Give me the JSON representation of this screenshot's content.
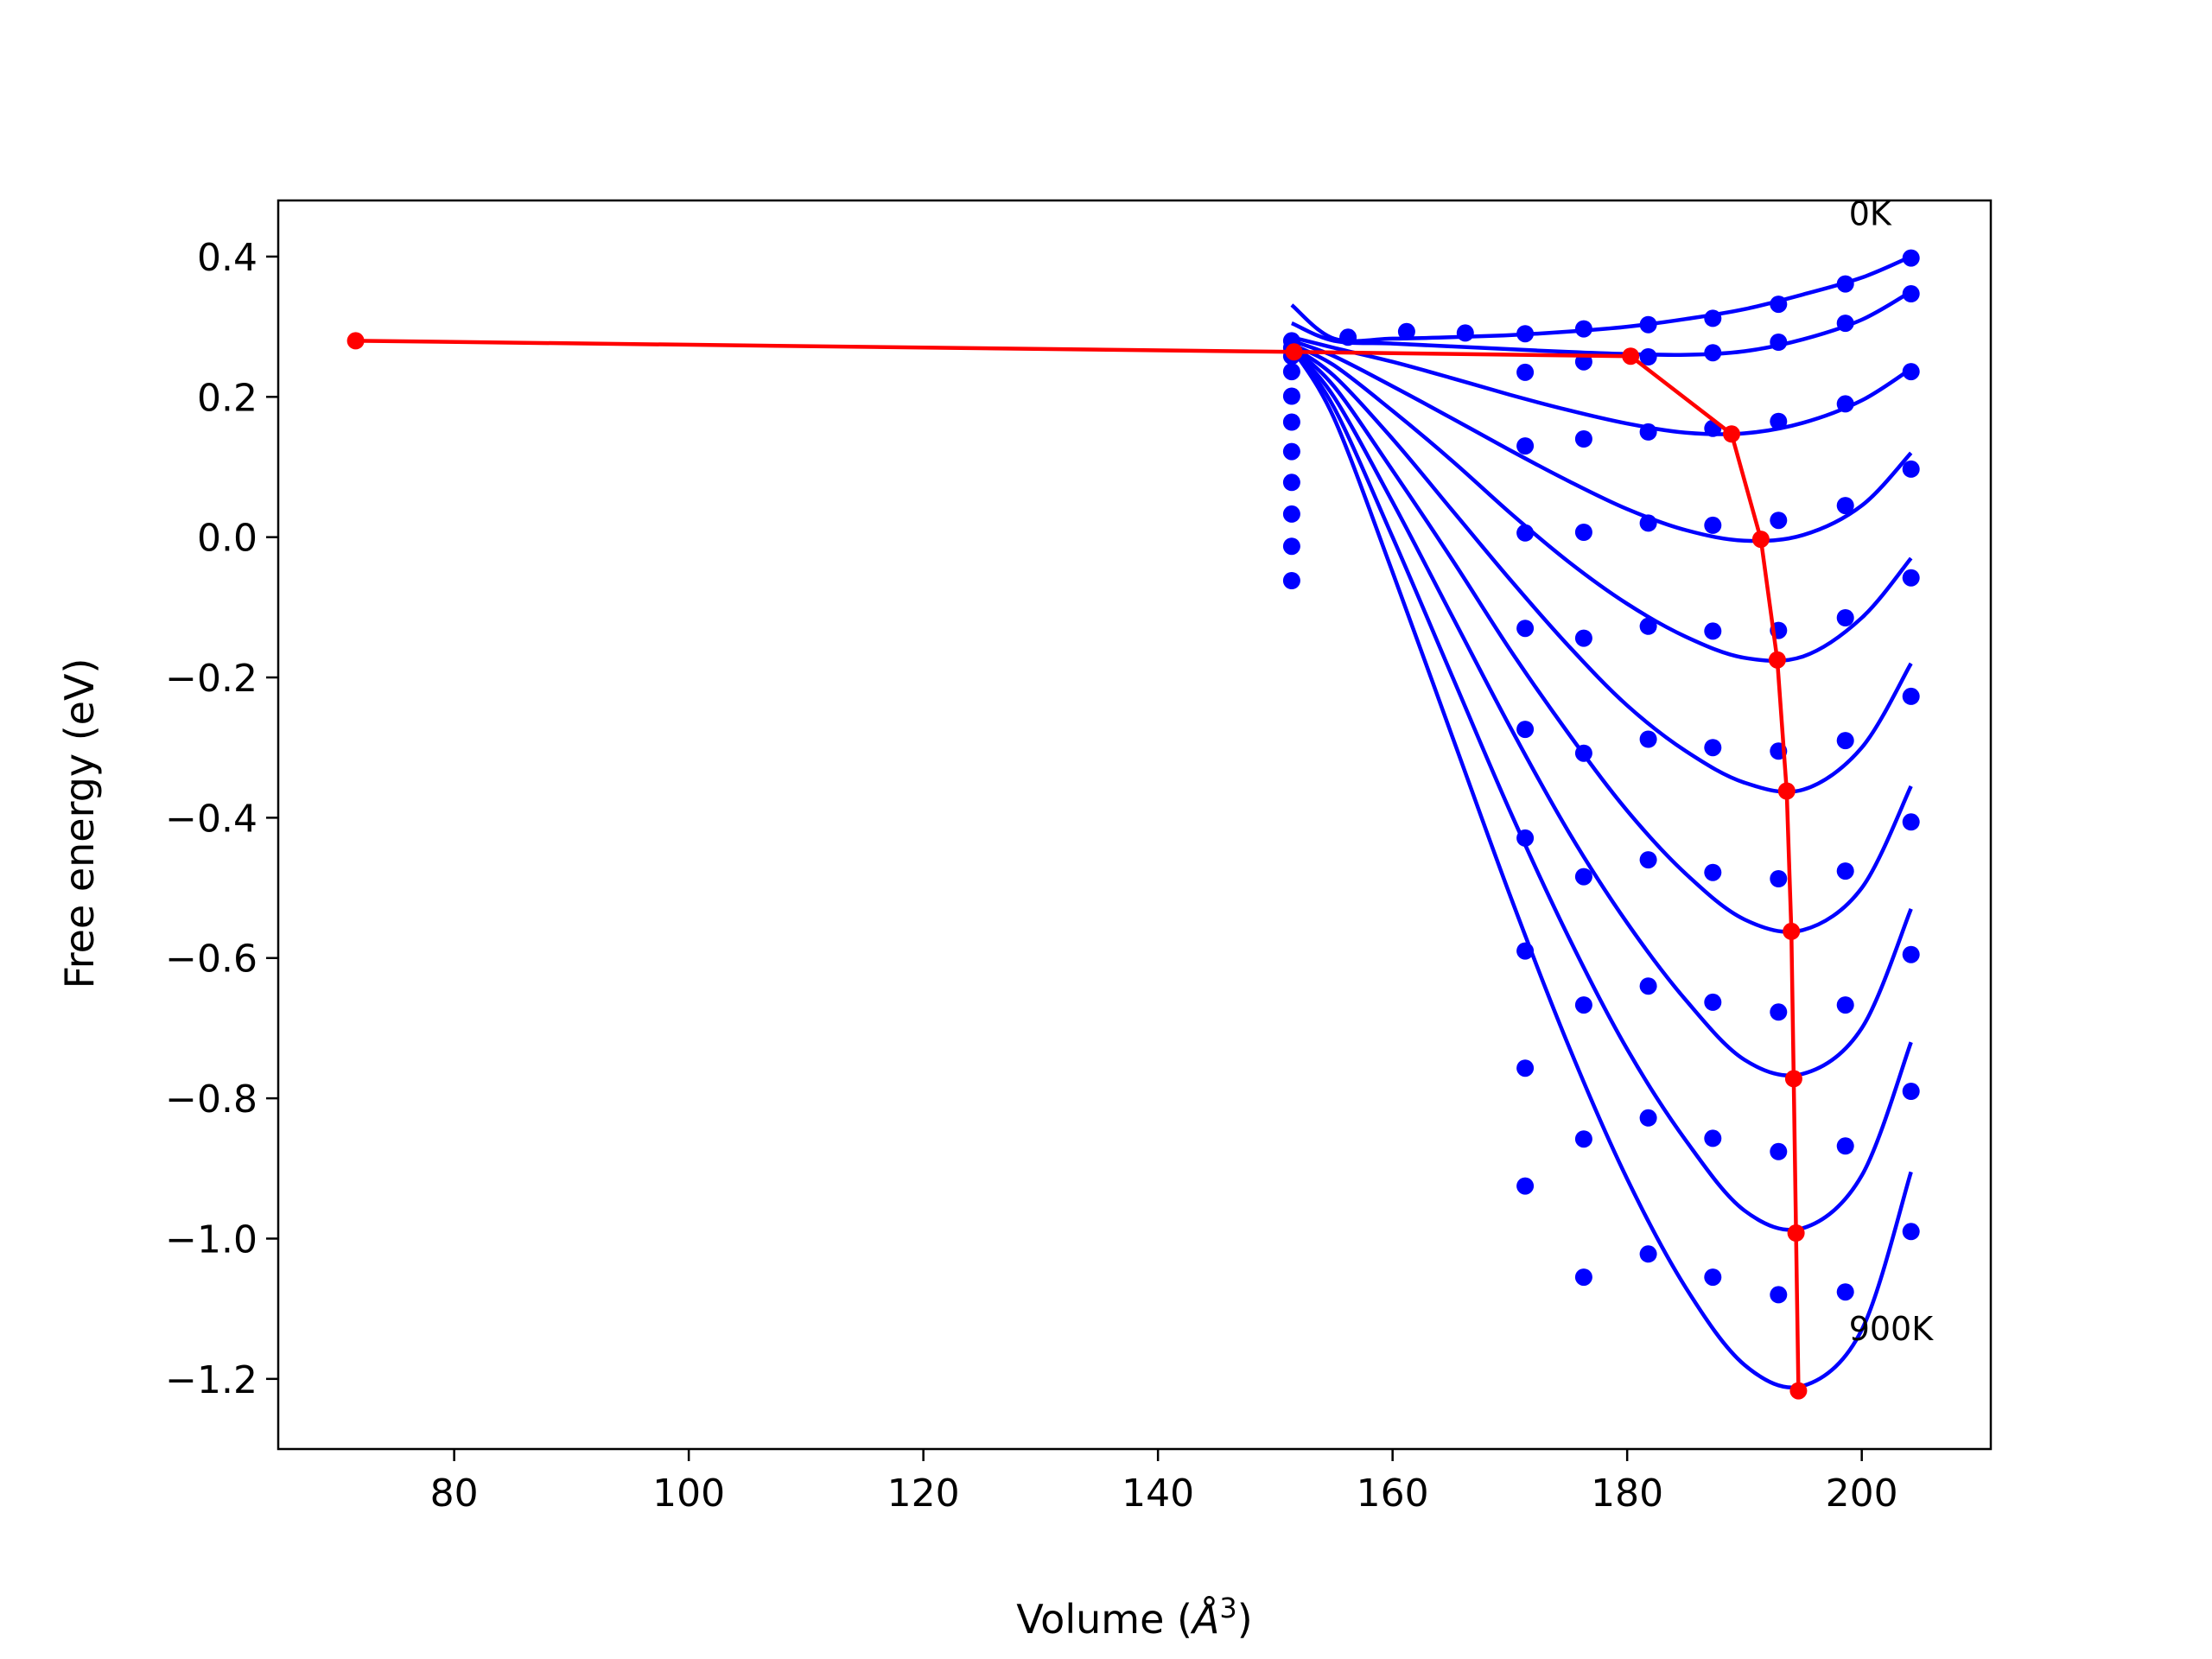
{
  "chart_data": {
    "type": "line",
    "title": "",
    "xlabel": "Volume (Å³)",
    "xlabel_parts": {
      "base": "Volume (",
      "unit": "Å",
      "exp": "3",
      "close": ")"
    },
    "ylabel": "Free energy (eV)",
    "xlim": [
      65,
      211
    ],
    "ylim": [
      -1.3,
      0.48
    ],
    "xticks": [
      80,
      100,
      120,
      140,
      160,
      180,
      200
    ],
    "xtick_labels": [
      "80",
      "100",
      "120",
      "140",
      "160",
      "180",
      "200"
    ],
    "yticks": [
      0.4,
      0.2,
      0.0,
      -0.2,
      -0.4,
      -0.6,
      -0.8,
      -1.0,
      -1.2
    ],
    "ytick_labels": [
      "0.4",
      "0.2",
      "0.0",
      "−0.2",
      "−0.4",
      "−0.6",
      "−0.8",
      "−1.0",
      "−1.2"
    ],
    "grid": false,
    "legend": "none",
    "colors": {
      "fit": "#0000ff",
      "points": "#0000ff",
      "minimum_path": "#ff0000"
    },
    "annotations": [
      {
        "text": "0K",
        "x": 198.9,
        "y": 0.445
      },
      {
        "text": "900K",
        "x": 198.9,
        "y": -1.145
      }
    ],
    "fit_curves": [
      {
        "x": [
          151.4,
          155,
          160,
          165,
          170,
          175,
          180,
          185,
          190,
          195,
          200,
          204.2
        ],
        "y": [
          0.331,
          0.283,
          0.283,
          0.285,
          0.288,
          0.293,
          0.3,
          0.311,
          0.325,
          0.346,
          0.37,
          0.4
        ]
      },
      {
        "x": [
          151.4,
          155,
          160,
          165,
          170,
          175,
          180,
          185,
          190,
          195,
          200,
          204.2
        ],
        "y": [
          0.305,
          0.28,
          0.276,
          0.272,
          0.268,
          0.264,
          0.261,
          0.26,
          0.265,
          0.282,
          0.31,
          0.35
        ]
      },
      {
        "x": [
          151.4,
          155,
          160,
          165,
          170,
          175,
          180,
          185,
          190,
          195,
          200,
          204.2
        ],
        "y": [
          0.285,
          0.27,
          0.25,
          0.227,
          0.203,
          0.181,
          0.162,
          0.149,
          0.148,
          0.163,
          0.195,
          0.24
        ]
      },
      {
        "x": [
          151.4,
          155,
          160,
          165,
          170,
          175,
          180,
          185,
          190,
          195,
          200,
          204.2
        ],
        "y": [
          0.28,
          0.258,
          0.215,
          0.17,
          0.124,
          0.08,
          0.04,
          0.01,
          -0.005,
          0.003,
          0.045,
          0.12
        ]
      },
      {
        "x": [
          151.4,
          155,
          160,
          165,
          170,
          175,
          180,
          185,
          190,
          195,
          200,
          204.2
        ],
        "y": [
          0.275,
          0.245,
          0.18,
          0.11,
          0.035,
          -0.035,
          -0.095,
          -0.142,
          -0.172,
          -0.17,
          -0.115,
          -0.03
        ]
      },
      {
        "x": [
          151.4,
          155,
          160,
          165,
          170,
          175,
          180,
          185,
          190,
          195,
          200,
          204.2
        ],
        "y": [
          0.272,
          0.23,
          0.14,
          0.04,
          -0.06,
          -0.155,
          -0.24,
          -0.305,
          -0.35,
          -0.36,
          -0.3,
          -0.18
        ]
      },
      {
        "x": [
          151.4,
          155,
          160,
          165,
          170,
          175,
          180,
          185,
          190,
          195,
          200,
          204.2
        ],
        "y": [
          0.271,
          0.215,
          0.095,
          -0.03,
          -0.16,
          -0.28,
          -0.39,
          -0.48,
          -0.545,
          -0.56,
          -0.5,
          -0.355
        ]
      },
      {
        "x": [
          151.4,
          155,
          160,
          165,
          170,
          175,
          180,
          185,
          190,
          195,
          200,
          204.2
        ],
        "y": [
          0.27,
          0.2,
          0.05,
          -0.11,
          -0.27,
          -0.42,
          -0.55,
          -0.66,
          -0.745,
          -0.765,
          -0.7,
          -0.53
        ]
      },
      {
        "x": [
          151.4,
          155,
          160,
          165,
          170,
          175,
          180,
          185,
          190,
          195,
          200,
          204.2
        ],
        "y": [
          0.27,
          0.185,
          0.0,
          -0.195,
          -0.39,
          -0.57,
          -0.73,
          -0.86,
          -0.96,
          -0.985,
          -0.91,
          -0.72
        ]
      },
      {
        "x": [
          151.4,
          155,
          160,
          165,
          170,
          175,
          180,
          185,
          190,
          195,
          200,
          204.2
        ],
        "y": [
          0.27,
          0.17,
          -0.05,
          -0.28,
          -0.51,
          -0.725,
          -0.915,
          -1.07,
          -1.18,
          -1.21,
          -1.13,
          -0.905
        ]
      }
    ],
    "point_series": [
      {
        "x": [
          151.4,
          156.2,
          161.2,
          166.2,
          171.3,
          176.3,
          181.8,
          187.3,
          192.9,
          198.6,
          204.2
        ],
        "y": [
          0.28,
          0.285,
          0.293,
          0.291,
          0.29,
          0.297,
          0.303,
          0.312,
          0.332,
          0.361,
          0.398
        ]
      },
      {
        "x": [
          151.4,
          181.8,
          187.3,
          192.9,
          198.6,
          204.2
        ],
        "y": [
          0.27,
          0.257,
          0.263,
          0.278,
          0.305,
          0.347
        ]
      },
      {
        "x": [
          151.4,
          171.3,
          176.3,
          181.8,
          187.3,
          192.9,
          198.6,
          204.2
        ],
        "y": [
          0.258,
          0.235,
          0.25,
          0.15,
          0.155,
          0.165,
          0.19,
          0.236
        ]
      },
      {
        "x": [
          151.4,
          171.3,
          176.3,
          181.8,
          187.3,
          192.9,
          198.6,
          204.2
        ],
        "y": [
          0.236,
          0.13,
          0.14,
          0.02,
          0.017,
          0.024,
          0.045,
          0.097
        ]
      },
      {
        "x": [
          151.4,
          171.3,
          176.3,
          181.8,
          187.3,
          192.9,
          198.6,
          204.2
        ],
        "y": [
          0.201,
          0.006,
          0.007,
          -0.127,
          -0.134,
          -0.133,
          -0.115,
          -0.058
        ]
      },
      {
        "x": [
          151.4,
          171.3,
          176.3,
          181.8,
          187.3,
          192.9,
          198.6,
          204.2
        ],
        "y": [
          0.164,
          -0.13,
          -0.144,
          -0.288,
          -0.3,
          -0.305,
          -0.29,
          -0.227
        ]
      },
      {
        "x": [
          151.4,
          171.3,
          176.3,
          181.8,
          187.3,
          192.9,
          198.6,
          204.2
        ],
        "y": [
          0.122,
          -0.274,
          -0.308,
          -0.46,
          -0.478,
          -0.487,
          -0.476,
          -0.406
        ]
      },
      {
        "x": [
          151.4,
          171.3,
          176.3,
          181.8,
          187.3,
          192.9,
          198.6,
          204.2
        ],
        "y": [
          0.078,
          -0.429,
          -0.484,
          -0.64,
          -0.663,
          -0.677,
          -0.667,
          -0.595
        ]
      },
      {
        "x": [
          151.4,
          171.3,
          176.3,
          181.8,
          187.3,
          192.9,
          198.6,
          204.2
        ],
        "y": [
          0.033,
          -0.59,
          -0.667,
          -0.828,
          -0.857,
          -0.876,
          -0.868,
          -0.79
        ]
      },
      {
        "x": [
          151.4,
          171.3,
          176.3,
          181.8,
          187.3,
          192.9,
          198.6,
          204.2
        ],
        "y": [
          -0.013,
          -0.757,
          -0.858,
          -1.022,
          -1.055,
          -1.08,
          -1.076,
          -0.99
        ]
      },
      {
        "x": [
          151.4,
          171.3,
          176.3
        ],
        "y": [
          -0.062,
          -0.925,
          -1.055
        ]
      }
    ],
    "minimum_path": {
      "x": [
        71.6,
        151.6,
        180.3,
        188.9,
        191.4,
        192.8,
        193.6,
        194.0,
        194.2,
        194.4,
        194.6
      ],
      "y": [
        0.28,
        0.264,
        0.258,
        0.147,
        -0.003,
        -0.175,
        -0.362,
        -0.562,
        -0.772,
        -0.992,
        -1.217
      ]
    }
  }
}
